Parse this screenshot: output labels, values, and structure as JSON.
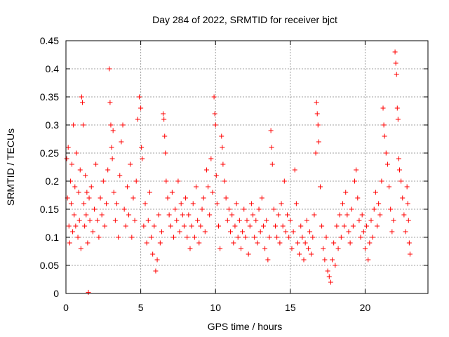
{
  "chart_data": {
    "type": "scatter",
    "title": "Day 284 of 2022, SRMTID for receiver bjct",
    "xlabel": "GPS time / hours",
    "ylabel": "SRMTID / TECUs",
    "xlim": [
      0,
      24.2
    ],
    "ylim": [
      0,
      0.45
    ],
    "xticks": [
      0,
      5,
      10,
      15,
      20
    ],
    "xtick_labels": [
      "0",
      "5",
      "10",
      "15",
      "20"
    ],
    "yticks": [
      0,
      0.05,
      0.1,
      0.15,
      0.2,
      0.25,
      0.3,
      0.35,
      0.4,
      0.45
    ],
    "ytick_labels": [
      "0",
      "0.05",
      "0.1",
      "0.15",
      "0.2",
      "0.25",
      "0.3",
      "0.35",
      "0.4",
      "0.45"
    ],
    "grid": true,
    "marker": "+",
    "color": "#ff0000",
    "series": [
      {
        "name": "SRMTID",
        "points": [
          [
            0.05,
            0.24
          ],
          [
            0.1,
            0.17
          ],
          [
            0.15,
            0.26
          ],
          [
            0.2,
            0.12
          ],
          [
            0.25,
            0.09
          ],
          [
            0.3,
            0.2
          ],
          [
            0.35,
            0.16
          ],
          [
            0.4,
            0.23
          ],
          [
            0.45,
            0.11
          ],
          [
            0.5,
            0.3
          ],
          [
            0.55,
            0.14
          ],
          [
            0.6,
            0.19
          ],
          [
            0.65,
            0.12
          ],
          [
            0.7,
            0.25
          ],
          [
            0.8,
            0.1
          ],
          [
            0.85,
            0.18
          ],
          [
            0.9,
            0.13
          ],
          [
            0.95,
            0.22
          ],
          [
            1.0,
            0.08
          ],
          [
            1.05,
            0.35
          ],
          [
            1.1,
            0.34
          ],
          [
            1.15,
            0.3
          ],
          [
            1.2,
            0.16
          ],
          [
            1.25,
            0.12
          ],
          [
            1.3,
            0.21
          ],
          [
            1.35,
            0.14
          ],
          [
            1.4,
            0.18
          ],
          [
            1.45,
            0.09
          ],
          [
            1.5,
            0.002
          ],
          [
            1.55,
            0.17
          ],
          [
            1.6,
            0.13
          ],
          [
            1.7,
            0.19
          ],
          [
            1.8,
            0.11
          ],
          [
            1.9,
            0.15
          ],
          [
            2.0,
            0.23
          ],
          [
            2.1,
            0.13
          ],
          [
            2.2,
            0.1
          ],
          [
            2.3,
            0.17
          ],
          [
            2.4,
            0.14
          ],
          [
            2.5,
            0.2
          ],
          [
            2.6,
            0.12
          ],
          [
            2.7,
            0.16
          ],
          [
            2.8,
            0.22
          ],
          [
            2.9,
            0.4
          ],
          [
            2.95,
            0.34
          ],
          [
            3.0,
            0.3
          ],
          [
            3.05,
            0.26
          ],
          [
            3.1,
            0.24
          ],
          [
            3.15,
            0.29
          ],
          [
            3.2,
            0.18
          ],
          [
            3.3,
            0.13
          ],
          [
            3.4,
            0.16
          ],
          [
            3.5,
            0.1
          ],
          [
            3.6,
            0.21
          ],
          [
            3.7,
            0.27
          ],
          [
            3.8,
            0.3
          ],
          [
            3.9,
            0.15
          ],
          [
            4.0,
            0.12
          ],
          [
            4.1,
            0.19
          ],
          [
            4.2,
            0.14
          ],
          [
            4.3,
            0.23
          ],
          [
            4.4,
            0.1
          ],
          [
            4.5,
            0.17
          ],
          [
            4.6,
            0.13
          ],
          [
            4.7,
            0.2
          ],
          [
            4.8,
            0.31
          ],
          [
            4.9,
            0.35
          ],
          [
            5.0,
            0.33
          ],
          [
            5.05,
            0.26
          ],
          [
            5.1,
            0.24
          ],
          [
            5.2,
            0.12
          ],
          [
            5.3,
            0.16
          ],
          [
            5.4,
            0.09
          ],
          [
            5.5,
            0.13
          ],
          [
            5.6,
            0.18
          ],
          [
            5.7,
            0.1
          ],
          [
            5.8,
            0.07
          ],
          [
            5.9,
            0.12
          ],
          [
            6.0,
            0.04
          ],
          [
            6.1,
            0.06
          ],
          [
            6.2,
            0.14
          ],
          [
            6.3,
            0.09
          ],
          [
            6.4,
            0.11
          ],
          [
            6.5,
            0.32
          ],
          [
            6.55,
            0.31
          ],
          [
            6.6,
            0.28
          ],
          [
            6.65,
            0.25
          ],
          [
            6.7,
            0.2
          ],
          [
            6.8,
            0.17
          ],
          [
            6.9,
            0.14
          ],
          [
            7.0,
            0.12
          ],
          [
            7.1,
            0.18
          ],
          [
            7.2,
            0.1
          ],
          [
            7.3,
            0.15
          ],
          [
            7.4,
            0.13
          ],
          [
            7.5,
            0.2
          ],
          [
            7.6,
            0.11
          ],
          [
            7.7,
            0.16
          ],
          [
            7.8,
            0.14
          ],
          [
            7.9,
            0.12
          ],
          [
            8.0,
            0.17
          ],
          [
            8.1,
            0.1
          ],
          [
            8.2,
            0.14
          ],
          [
            8.3,
            0.08
          ],
          [
            8.4,
            0.12
          ],
          [
            8.5,
            0.16
          ],
          [
            8.6,
            0.1
          ],
          [
            8.7,
            0.19
          ],
          [
            8.8,
            0.13
          ],
          [
            8.9,
            0.09
          ],
          [
            9.0,
            0.12
          ],
          [
            9.1,
            0.15
          ],
          [
            9.2,
            0.17
          ],
          [
            9.3,
            0.11
          ],
          [
            9.4,
            0.22
          ],
          [
            9.5,
            0.19
          ],
          [
            9.6,
            0.14
          ],
          [
            9.7,
            0.24
          ],
          [
            9.8,
            0.18
          ],
          [
            9.9,
            0.35
          ],
          [
            9.95,
            0.32
          ],
          [
            10.0,
            0.3
          ],
          [
            10.05,
            0.21
          ],
          [
            10.1,
            0.16
          ],
          [
            10.2,
            0.12
          ],
          [
            10.3,
            0.08
          ],
          [
            10.4,
            0.28
          ],
          [
            10.45,
            0.26
          ],
          [
            10.5,
            0.23
          ],
          [
            10.6,
            0.2
          ],
          [
            10.7,
            0.17
          ],
          [
            10.8,
            0.13
          ],
          [
            10.9,
            0.15
          ],
          [
            11.0,
            0.11
          ],
          [
            11.1,
            0.14
          ],
          [
            11.2,
            0.09
          ],
          [
            11.3,
            0.12
          ],
          [
            11.4,
            0.16
          ],
          [
            11.5,
            0.1
          ],
          [
            11.6,
            0.13
          ],
          [
            11.7,
            0.08
          ],
          [
            11.8,
            0.11
          ],
          [
            11.9,
            0.15
          ],
          [
            12.0,
            0.1
          ],
          [
            12.1,
            0.13
          ],
          [
            12.2,
            0.07
          ],
          [
            12.3,
            0.12
          ],
          [
            12.4,
            0.16
          ],
          [
            12.5,
            0.14
          ],
          [
            12.6,
            0.1
          ],
          [
            12.7,
            0.13
          ],
          [
            12.8,
            0.09
          ],
          [
            12.9,
            0.15
          ],
          [
            13.0,
            0.11
          ],
          [
            13.1,
            0.17
          ],
          [
            13.2,
            0.12
          ],
          [
            13.3,
            0.08
          ],
          [
            13.4,
            0.13
          ],
          [
            13.5,
            0.06
          ],
          [
            13.6,
            0.1
          ],
          [
            13.7,
            0.29
          ],
          [
            13.75,
            0.26
          ],
          [
            13.8,
            0.23
          ],
          [
            13.9,
            0.15
          ],
          [
            14.0,
            0.12
          ],
          [
            14.1,
            0.1
          ],
          [
            14.2,
            0.14
          ],
          [
            14.3,
            0.09
          ],
          [
            14.4,
            0.16
          ],
          [
            14.5,
            0.12
          ],
          [
            14.6,
            0.2
          ],
          [
            14.7,
            0.11
          ],
          [
            14.8,
            0.14
          ],
          [
            14.9,
            0.1
          ],
          [
            15.0,
            0.13
          ],
          [
            15.1,
            0.08
          ],
          [
            15.2,
            0.11
          ],
          [
            15.3,
            0.22
          ],
          [
            15.4,
            0.16
          ],
          [
            15.5,
            0.09
          ],
          [
            15.6,
            0.07
          ],
          [
            15.7,
            0.12
          ],
          [
            15.8,
            0.1
          ],
          [
            15.9,
            0.06
          ],
          [
            16.0,
            0.09
          ],
          [
            16.1,
            0.13
          ],
          [
            16.2,
            0.08
          ],
          [
            16.3,
            0.11
          ],
          [
            16.4,
            0.07
          ],
          [
            16.5,
            0.1
          ],
          [
            16.6,
            0.14
          ],
          [
            16.7,
            0.25
          ],
          [
            16.75,
            0.34
          ],
          [
            16.8,
            0.32
          ],
          [
            16.85,
            0.3
          ],
          [
            16.9,
            0.27
          ],
          [
            17.0,
            0.19
          ],
          [
            17.1,
            0.12
          ],
          [
            17.2,
            0.08
          ],
          [
            17.3,
            0.06
          ],
          [
            17.4,
            0.1
          ],
          [
            17.5,
            0.04
          ],
          [
            17.6,
            0.03
          ],
          [
            17.7,
            0.02
          ],
          [
            17.8,
            0.06
          ],
          [
            17.9,
            0.09
          ],
          [
            18.0,
            0.05
          ],
          [
            18.1,
            0.12
          ],
          [
            18.2,
            0.08
          ],
          [
            18.3,
            0.14
          ],
          [
            18.4,
            0.1
          ],
          [
            18.5,
            0.16
          ],
          [
            18.6,
            0.12
          ],
          [
            18.7,
            0.18
          ],
          [
            18.8,
            0.14
          ],
          [
            18.9,
            0.11
          ],
          [
            19.0,
            0.09
          ],
          [
            19.1,
            0.15
          ],
          [
            19.2,
            0.12
          ],
          [
            19.3,
            0.2
          ],
          [
            19.4,
            0.22
          ],
          [
            19.5,
            0.17
          ],
          [
            19.6,
            0.13
          ],
          [
            19.7,
            0.1
          ],
          [
            19.8,
            0.14
          ],
          [
            19.9,
            0.11
          ],
          [
            20.0,
            0.08
          ],
          [
            20.1,
            0.12
          ],
          [
            20.2,
            0.06
          ],
          [
            20.3,
            0.09
          ],
          [
            20.4,
            0.13
          ],
          [
            20.5,
            0.1
          ],
          [
            20.6,
            0.15
          ],
          [
            20.7,
            0.18
          ],
          [
            20.8,
            0.12
          ],
          [
            20.9,
            0.16
          ],
          [
            21.0,
            0.14
          ],
          [
            21.1,
            0.2
          ],
          [
            21.2,
            0.33
          ],
          [
            21.25,
            0.3
          ],
          [
            21.3,
            0.28
          ],
          [
            21.4,
            0.25
          ],
          [
            21.5,
            0.23
          ],
          [
            21.6,
            0.19
          ],
          [
            21.7,
            0.15
          ],
          [
            21.8,
            0.11
          ],
          [
            21.9,
            0.13
          ],
          [
            22.0,
            0.43
          ],
          [
            22.05,
            0.41
          ],
          [
            22.1,
            0.39
          ],
          [
            22.15,
            0.33
          ],
          [
            22.2,
            0.31
          ],
          [
            22.25,
            0.24
          ],
          [
            22.3,
            0.22
          ],
          [
            22.4,
            0.2
          ],
          [
            22.5,
            0.17
          ],
          [
            22.6,
            0.14
          ],
          [
            22.7,
            0.11
          ],
          [
            22.8,
            0.19
          ],
          [
            22.85,
            0.16
          ],
          [
            22.9,
            0.13
          ],
          [
            22.95,
            0.09
          ],
          [
            23.0,
            0.07
          ]
        ]
      }
    ]
  }
}
